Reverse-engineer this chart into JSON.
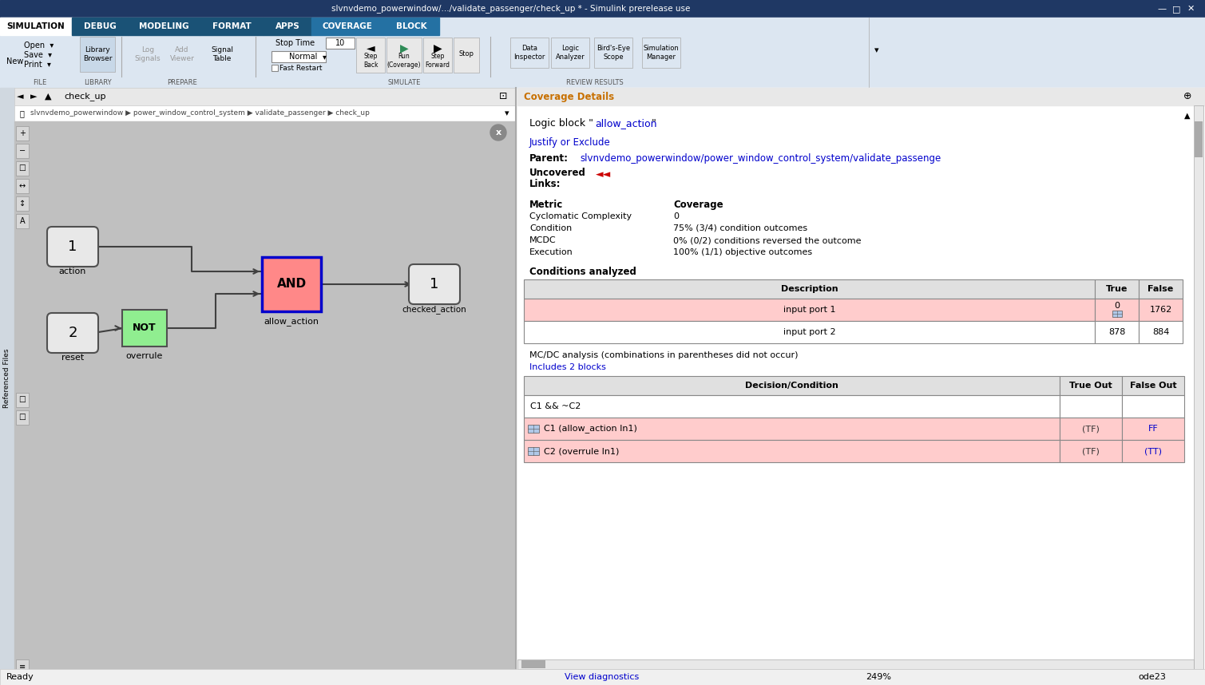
{
  "title_bar": "slvnvdemo_powerwindow/.../validate_passenger/check_up * - Simulink prerelease use",
  "tabs": [
    "SIMULATION",
    "DEBUG",
    "MODELING",
    "FORMAT",
    "APPS",
    "COVERAGE",
    "BLOCK"
  ],
  "toolbar_bg": "#1a5276",
  "window_bg": "#f0f0f0",
  "canvas_bg": "#c8c8c8",
  "right_panel_bg": "#ffffff",
  "title_bar_bg": "#1f3864",
  "coverage_title": "Coverage Details",
  "logic_block_prefix": "Logic block \"",
  "logic_block_link": "allow_action",
  "logic_block_suffix": "\"",
  "justify_text": "Justify or Exclude",
  "parent_label": "Parent:",
  "parent_value": "slvnvdemo_powerwindow/power_window_control_system/validate_passenge",
  "metric_label": "Metric",
  "coverage_label": "Coverage",
  "metrics": [
    [
      "Cyclomatic Complexity",
      "0"
    ],
    [
      "Condition",
      "75% (3/4) condition outcomes"
    ],
    [
      "MCDC",
      "0% (0/2) conditions reversed the outcome"
    ],
    [
      "Execution",
      "100% (1/1) objective outcomes"
    ]
  ],
  "conditions_title": "Conditions analyzed",
  "cond_headers": [
    "Description",
    "True",
    "False"
  ],
  "cond_rows": [
    [
      "input port 1",
      "0",
      "1762",
      true
    ],
    [
      "input port 2",
      "878",
      "884",
      false
    ]
  ],
  "mcdc_title": "MC/DC analysis (combinations in parentheses did not occur)",
  "mcdc_link": "Includes 2 blocks",
  "mcdc_headers": [
    "Decision/Condition",
    "True Out",
    "False Out"
  ],
  "mcdc_rows": [
    [
      "C1 && ~C2",
      "",
      "",
      false
    ],
    [
      "C1 (allow_action In1)",
      "(TF)",
      "FF",
      true
    ],
    [
      "C2 (overrule In1)",
      "(TF)",
      "(TT)",
      true
    ]
  ],
  "status_bar_text": "Ready",
  "view_diagnostics": "View diagnostics",
  "zoom_level": "249%",
  "ode": "ode23",
  "pink_row_color": "#ffcccc",
  "white_row_color": "#ffffff",
  "link_color": "#0000cc"
}
